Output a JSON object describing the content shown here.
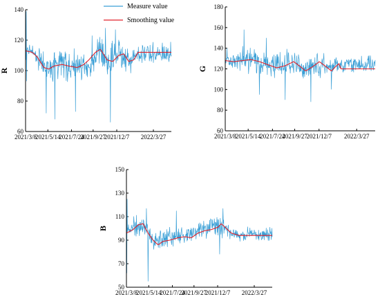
{
  "colors": {
    "measure": "#3a9fd6",
    "smoothing": "#e0202a",
    "axis": "#000000"
  },
  "legend": {
    "position": "top-center",
    "items": [
      {
        "label": "Measure value",
        "color": "#3a9fd6"
      },
      {
        "label": "Smoothing value",
        "color": "#e0202a"
      }
    ]
  },
  "chart_data": [
    {
      "type": "line",
      "ylabel": "R",
      "xlabel": "",
      "ylim": [
        60,
        140
      ],
      "yticks": [
        60,
        80,
        100,
        120,
        140
      ],
      "xlim": [
        "2021-03-08",
        "2022-05-20"
      ],
      "xtick_labels": [
        "2021/3/8",
        "2021/5/14",
        "2021/7/24",
        "2021/9/27",
        "2021/12/7",
        "2022/3/27"
      ],
      "xtick_dates": [
        "2021-03-08",
        "2021-05-14",
        "2021-07-24",
        "2021-09-27",
        "2021-12-07",
        "2022-03-27"
      ],
      "series": [
        {
          "name": "Measure value",
          "style": "noisy",
          "center": [
            [
              0,
              113
            ],
            [
              20,
              113
            ],
            [
              40,
              109
            ],
            [
              60,
              102
            ],
            [
              80,
              102
            ],
            [
              100,
              104
            ],
            [
              120,
              104
            ],
            [
              140,
              102
            ],
            [
              160,
              102
            ],
            [
              180,
              104
            ],
            [
              200,
              107
            ],
            [
              220,
              112
            ],
            [
              240,
              106
            ],
            [
              260,
              107
            ],
            [
              280,
              110
            ],
            [
              300,
              106
            ],
            [
              320,
              107
            ],
            [
              338,
              111
            ]
          ],
          "spread": [
            [
              0,
              12
            ],
            [
              20,
              6
            ],
            [
              40,
              14
            ],
            [
              60,
              16
            ],
            [
              100,
              14
            ],
            [
              140,
              14
            ],
            [
              200,
              14
            ],
            [
              240,
              16
            ],
            [
              300,
              12
            ],
            [
              338,
              10
            ]
          ],
          "spikes": [
            [
              2,
              139,
              1
            ],
            [
              3,
              93,
              0
            ],
            [
              62,
              72,
              0
            ],
            [
              88,
              68,
              0
            ],
            [
              150,
              73,
              0
            ],
            [
              255,
              66,
              0
            ],
            [
              256,
              115,
              1
            ],
            [
              240,
              128,
              1
            ],
            [
              270,
              127,
              1
            ],
            [
              200,
              123,
              1
            ]
          ]
        },
        {
          "name": "Smoothing value",
          "points": [
            [
              0,
              113
            ],
            [
              20,
              112
            ],
            [
              35,
              109
            ],
            [
              55,
              102
            ],
            [
              70,
              101
            ],
            [
              85,
              103
            ],
            [
              110,
              104
            ],
            [
              130,
              103
            ],
            [
              155,
              102
            ],
            [
              175,
              104
            ],
            [
              190,
              107
            ],
            [
              210,
              112
            ],
            [
              225,
              114
            ],
            [
              245,
              107
            ],
            [
              262,
              106
            ],
            [
              280,
              110
            ],
            [
              295,
              111
            ],
            [
              310,
              106
            ],
            [
              325,
              107
            ],
            [
              338,
              112
            ]
          ]
        }
      ]
    },
    {
      "type": "line",
      "ylabel": "G",
      "xlabel": "",
      "ylim": [
        60,
        180
      ],
      "yticks": [
        60,
        80,
        100,
        120,
        140,
        160,
        180
      ],
      "xlim": [
        "2021-03-08",
        "2022-05-20"
      ],
      "xtick_labels": [
        "2021/3/8",
        "2021/5/14",
        "2021/7/24",
        "2021/9/27",
        "2021/12/7",
        "2022/3/27"
      ],
      "xtick_dates": [
        "2021-03-08",
        "2021-05-14",
        "2021-07-24",
        "2021-09-27",
        "2021-12-07",
        "2022-03-27"
      ],
      "series": [
        {
          "name": "Measure value",
          "style": "noisy",
          "center": [
            [
              0,
              128
            ],
            [
              30,
              128
            ],
            [
              60,
              130
            ],
            [
              90,
              126
            ],
            [
              120,
              124
            ],
            [
              150,
              124
            ],
            [
              180,
              126
            ],
            [
              210,
              122
            ],
            [
              240,
              120
            ],
            [
              270,
              124
            ],
            [
              300,
              122
            ],
            [
              338,
              124
            ]
          ],
          "spread": [
            [
              0,
              10
            ],
            [
              40,
              14
            ],
            [
              70,
              20
            ],
            [
              120,
              18
            ],
            [
              180,
              18
            ],
            [
              240,
              16
            ],
            [
              300,
              14
            ],
            [
              338,
              12
            ]
          ],
          "spikes": [
            [
              5,
              140,
              1
            ],
            [
              55,
              158,
              1
            ],
            [
              100,
              95,
              0
            ],
            [
              175,
              90,
              0
            ],
            [
              250,
              88,
              0
            ],
            [
              310,
              100,
              0
            ],
            [
              120,
              150,
              1
            ]
          ]
        },
        {
          "name": "Smoothing value",
          "points": [
            [
              0,
              128
            ],
            [
              25,
              127
            ],
            [
              50,
              128
            ],
            [
              75,
              129
            ],
            [
              100,
              127
            ],
            [
              125,
              124
            ],
            [
              150,
              121
            ],
            [
              175,
              123
            ],
            [
              200,
              127
            ],
            [
              220,
              122
            ],
            [
              235,
              118
            ],
            [
              255,
              122
            ],
            [
              275,
              127
            ],
            [
              295,
              122
            ],
            [
              310,
              118
            ],
            [
              322,
              122
            ],
            [
              332,
              125
            ],
            [
              338,
              120
            ]
          ]
        }
      ]
    },
    {
      "type": "line",
      "ylabel": "B",
      "xlabel": "",
      "ylim": [
        50,
        150
      ],
      "yticks": [
        50,
        70,
        90,
        110,
        130,
        150
      ],
      "xlim": [
        "2021-03-08",
        "2022-05-20"
      ],
      "xtick_labels": [
        "2021/3/8",
        "2021/5/14",
        "2021/7/24",
        "2021/9/27",
        "2021/12/7",
        "2022/3/27"
      ],
      "xtick_dates": [
        "2021-03-08",
        "2021-05-14",
        "2021-07-24",
        "2021-09-27",
        "2021-12-07",
        "2022-03-27"
      ],
      "series": [
        {
          "name": "Measure value",
          "style": "noisy",
          "center": [
            [
              0,
              97
            ],
            [
              20,
              100
            ],
            [
              40,
              103
            ],
            [
              60,
              98
            ],
            [
              80,
              90
            ],
            [
              100,
              90
            ],
            [
              130,
              93
            ],
            [
              160,
              93
            ],
            [
              190,
              96
            ],
            [
              220,
              100
            ],
            [
              250,
              102
            ],
            [
              280,
              102
            ],
            [
              310,
              97
            ],
            [
              338,
              95
            ]
          ],
          "spread": [
            [
              0,
              6
            ],
            [
              15,
              10
            ],
            [
              30,
              14
            ],
            [
              60,
              14
            ],
            [
              100,
              14
            ],
            [
              160,
              12
            ],
            [
              220,
              12
            ],
            [
              280,
              12
            ],
            [
              338,
              8
            ]
          ],
          "spikes": [
            [
              1,
              62,
              0
            ],
            [
              2,
              125,
              1
            ],
            [
              65,
              55,
              0
            ],
            [
              60,
              117,
              1
            ],
            [
              150,
              115,
              1
            ],
            [
              290,
              117,
              1
            ],
            [
              280,
              78,
              0
            ]
          ]
        },
        {
          "name": "Smoothing value",
          "points": [
            [
              0,
              96
            ],
            [
              20,
              99
            ],
            [
              35,
              103
            ],
            [
              50,
              104
            ],
            [
              65,
              96
            ],
            [
              80,
              90
            ],
            [
              95,
              86
            ],
            [
              110,
              89
            ],
            [
              130,
              90
            ],
            [
              155,
              92
            ],
            [
              175,
              93
            ],
            [
              195,
              92
            ],
            [
              215,
              96
            ],
            [
              235,
              98
            ],
            [
              255,
              99
            ],
            [
              275,
              101
            ],
            [
              285,
              104
            ],
            [
              300,
              100
            ],
            [
              315,
              96
            ],
            [
              338,
              94
            ]
          ]
        }
      ]
    }
  ]
}
